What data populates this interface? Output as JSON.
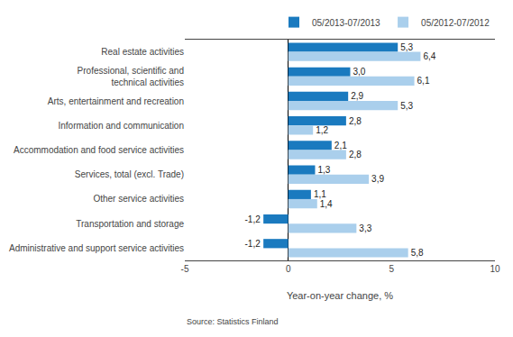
{
  "chart_data": {
    "type": "bar",
    "orientation": "horizontal",
    "categories": [
      "Real estate activities",
      "Professional, scientific and\ntechnical activities",
      "Arts, entertainment and recreation",
      "Information and communication",
      "Accommodation and food service activities",
      "Services, total (excl. Trade)",
      "Other service activities",
      "Transportation and storage",
      "Administrative and support service activities"
    ],
    "series": [
      {
        "name": "05/2013-07/2013",
        "color": "#1a7abf",
        "values": [
          5.3,
          3.0,
          2.9,
          2.8,
          2.1,
          1.3,
          1.1,
          -1.2,
          -1.2
        ],
        "value_labels": [
          "5,3",
          "3,0",
          "2,9",
          "2,8",
          "2,1",
          "1,3",
          "1,1",
          "-1,2",
          "-1,2"
        ]
      },
      {
        "name": "05/2012-07/2012",
        "color": "#aacfec",
        "values": [
          6.4,
          6.1,
          5.3,
          1.2,
          2.8,
          3.9,
          1.4,
          3.3,
          5.8
        ],
        "value_labels": [
          "6,4",
          "6,1",
          "5,3",
          "1,2",
          "2,8",
          "3,9",
          "1,4",
          "3,3",
          "5,8"
        ]
      }
    ],
    "xlabel": "Year-on-year change, %",
    "xlim": [
      -5,
      10
    ],
    "xticks": [
      -5,
      0,
      5,
      10
    ],
    "annotations": [
      "Source: Statistics Finland"
    ],
    "data_labels": true,
    "grid": false,
    "legend": "top"
  }
}
